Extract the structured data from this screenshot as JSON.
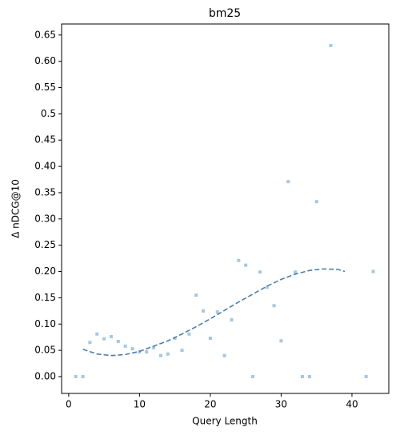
{
  "chart_data": {
    "type": "scatter",
    "title": "bm25",
    "x_label": "Query Length",
    "y_label": "Δ nDCG@10",
    "xlim": [
      -1,
      45.2
    ],
    "ylim": [
      -0.032,
      0.671
    ],
    "xticks": [
      0,
      10,
      20,
      30,
      40
    ],
    "yticks": [
      {
        "value": 0,
        "label": "0.00"
      },
      0.05,
      {
        "value": 0.1,
        "label": "0.10"
      },
      0.15,
      {
        "value": 0.2,
        "label": "0.20"
      },
      0.25,
      {
        "value": 0.3,
        "label": "0.30"
      },
      0.35,
      {
        "value": 0.4,
        "label": "0.40"
      },
      0.45,
      0.5,
      0.55,
      {
        "value": 0.6,
        "label": "0.60"
      },
      0.65
    ],
    "series": [
      {
        "type": "scatter",
        "color": "#8fb9d9",
        "x": [
          1,
          2,
          3,
          4,
          5,
          6,
          7,
          8,
          9,
          10,
          11,
          12,
          13,
          14,
          15,
          16,
          17,
          18,
          19,
          20,
          21,
          22,
          23,
          24,
          25,
          26,
          27,
          28,
          29,
          30,
          31,
          32,
          33,
          34,
          35,
          37,
          42,
          43
        ],
        "values": [
          0,
          0,
          0.065,
          0.081,
          0.072,
          0.076,
          0.067,
          0.058,
          0.053,
          0.047,
          0.047,
          0.055,
          0.04,
          0.043,
          0.073,
          0.05,
          0.081,
          0.155,
          0.125,
          0.073,
          0.123,
          0.04,
          0.108,
          0.221,
          0.212,
          0,
          0.199,
          0.17,
          0.135,
          0.068,
          0.371,
          0.199,
          0,
          0,
          0.333,
          0.63,
          0,
          0.2
        ]
      },
      {
        "type": "line",
        "color": "#4a7fa8",
        "dashed": true,
        "x": [
          2,
          4,
          6,
          8,
          10,
          12,
          14,
          16,
          18,
          20,
          22,
          24,
          26,
          28,
          30,
          32,
          34,
          36,
          38,
          39
        ],
        "values": [
          0.052,
          0.043,
          0.04,
          0.042,
          0.048,
          0.058,
          0.068,
          0.081,
          0.095,
          0.11,
          0.126,
          0.142,
          0.157,
          0.172,
          0.185,
          0.195,
          0.202,
          0.205,
          0.204,
          0.2
        ]
      }
    ]
  }
}
